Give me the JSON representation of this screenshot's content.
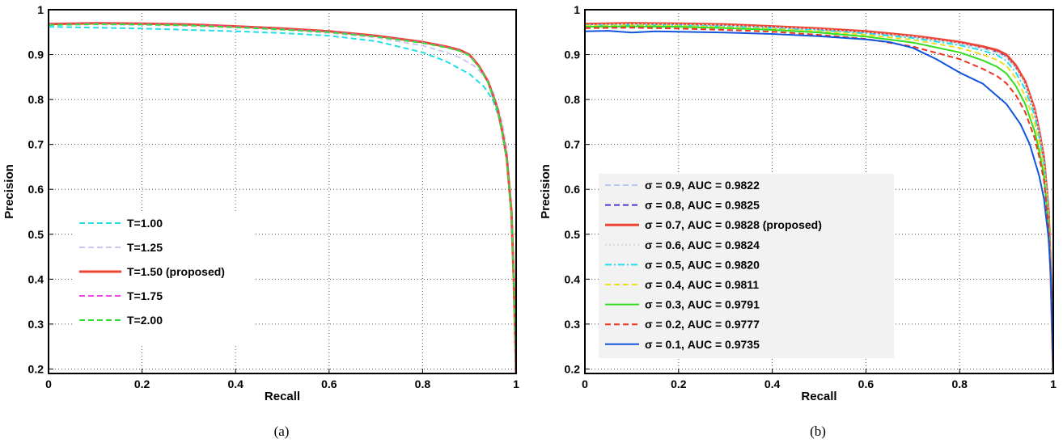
{
  "chart_data": [
    {
      "type": "line",
      "caption": "(a)",
      "xlabel": "Recall",
      "ylabel": "Precision",
      "xlim": [
        0,
        1
      ],
      "ylim": [
        0.19,
        1
      ],
      "xticks": [
        "0",
        "0.2",
        "0.4",
        "0.6",
        "0.8",
        "1"
      ],
      "yticks": [
        "0.2",
        "0.3",
        "0.4",
        "0.5",
        "0.6",
        "0.7",
        "0.8",
        "0.9",
        "1"
      ],
      "grid": true,
      "legend_position": "center-left",
      "series": [
        {
          "name": "T=1.00",
          "color": "#22e0e6",
          "dash": "dashed",
          "x": [
            0,
            0.1,
            0.2,
            0.3,
            0.4,
            0.5,
            0.6,
            0.7,
            0.8,
            0.85,
            0.9,
            0.93,
            0.95,
            0.97,
            0.98,
            0.99,
            0.995,
            1.0
          ],
          "y": [
            0.962,
            0.96,
            0.958,
            0.955,
            0.952,
            0.948,
            0.942,
            0.93,
            0.905,
            0.885,
            0.857,
            0.83,
            0.8,
            0.74,
            0.68,
            0.55,
            0.4,
            0.19
          ]
        },
        {
          "name": "T=1.25",
          "color": "#c8c8f0",
          "dash": "dashed",
          "x": [
            0,
            0.1,
            0.2,
            0.3,
            0.4,
            0.5,
            0.6,
            0.7,
            0.8,
            0.85,
            0.88,
            0.91,
            0.93,
            0.95,
            0.97,
            0.98,
            0.99,
            0.995,
            1.0
          ],
          "y": [
            0.966,
            0.967,
            0.966,
            0.964,
            0.96,
            0.955,
            0.948,
            0.938,
            0.92,
            0.905,
            0.893,
            0.875,
            0.855,
            0.82,
            0.75,
            0.69,
            0.56,
            0.41,
            0.19
          ]
        },
        {
          "name": "T=1.50 (proposed)",
          "color": "#ee4433",
          "dash": "solid",
          "x": [
            0,
            0.1,
            0.2,
            0.3,
            0.4,
            0.5,
            0.6,
            0.7,
            0.8,
            0.85,
            0.88,
            0.9,
            0.92,
            0.94,
            0.96,
            0.97,
            0.98,
            0.99,
            0.995,
            1.0
          ],
          "y": [
            0.968,
            0.97,
            0.969,
            0.967,
            0.963,
            0.958,
            0.952,
            0.942,
            0.928,
            0.918,
            0.91,
            0.9,
            0.875,
            0.84,
            0.78,
            0.73,
            0.67,
            0.55,
            0.4,
            0.19
          ]
        },
        {
          "name": "T=1.75",
          "color": "#ee44ee",
          "dash": "dashed",
          "x": [
            0,
            0.1,
            0.2,
            0.3,
            0.4,
            0.5,
            0.6,
            0.7,
            0.8,
            0.85,
            0.88,
            0.9,
            0.92,
            0.94,
            0.96,
            0.97,
            0.98,
            0.99,
            0.995,
            1.0
          ],
          "y": [
            0.967,
            0.969,
            0.968,
            0.966,
            0.962,
            0.957,
            0.951,
            0.941,
            0.927,
            0.917,
            0.909,
            0.899,
            0.874,
            0.839,
            0.779,
            0.729,
            0.668,
            0.548,
            0.4,
            0.19
          ]
        },
        {
          "name": "T=2.00",
          "color": "#33dd33",
          "dash": "dashed",
          "x": [
            0,
            0.1,
            0.2,
            0.3,
            0.4,
            0.5,
            0.6,
            0.7,
            0.8,
            0.85,
            0.88,
            0.9,
            0.92,
            0.94,
            0.96,
            0.97,
            0.98,
            0.99,
            0.995,
            1.0
          ],
          "y": [
            0.966,
            0.968,
            0.967,
            0.965,
            0.961,
            0.956,
            0.95,
            0.94,
            0.926,
            0.916,
            0.908,
            0.898,
            0.873,
            0.838,
            0.778,
            0.728,
            0.667,
            0.547,
            0.4,
            0.19
          ]
        }
      ]
    },
    {
      "type": "line",
      "caption": "(b)",
      "xlabel": "Recall",
      "ylabel": "Precision",
      "xlim": [
        0,
        1
      ],
      "ylim": [
        0.19,
        1
      ],
      "xticks": [
        "0",
        "0.2",
        "0.4",
        "0.6",
        "0.8",
        "1"
      ],
      "yticks": [
        "0.2",
        "0.3",
        "0.4",
        "0.5",
        "0.6",
        "0.7",
        "0.8",
        "0.9",
        "1"
      ],
      "grid": true,
      "legend_position": "center-left",
      "series": [
        {
          "name": "σ = 0.9, AUC = 0.9822",
          "color": "#b4c8f0",
          "dash": "dashed",
          "x": [
            0,
            0.1,
            0.2,
            0.3,
            0.4,
            0.5,
            0.6,
            0.7,
            0.8,
            0.85,
            0.88,
            0.9,
            0.92,
            0.94,
            0.96,
            0.97,
            0.98,
            0.99,
            0.995,
            1.0
          ],
          "y": [
            0.966,
            0.968,
            0.967,
            0.965,
            0.961,
            0.956,
            0.949,
            0.94,
            0.925,
            0.914,
            0.905,
            0.894,
            0.87,
            0.835,
            0.775,
            0.725,
            0.665,
            0.545,
            0.4,
            0.19
          ]
        },
        {
          "name": "σ = 0.8, AUC = 0.9825",
          "color": "#5533cc",
          "dash": "dashed",
          "x": [
            0,
            0.1,
            0.2,
            0.3,
            0.4,
            0.5,
            0.6,
            0.7,
            0.8,
            0.85,
            0.88,
            0.9,
            0.92,
            0.94,
            0.96,
            0.97,
            0.98,
            0.99,
            0.995,
            1.0
          ],
          "y": [
            0.967,
            0.969,
            0.968,
            0.966,
            0.962,
            0.957,
            0.95,
            0.941,
            0.927,
            0.916,
            0.907,
            0.897,
            0.873,
            0.838,
            0.778,
            0.728,
            0.667,
            0.547,
            0.4,
            0.19
          ]
        },
        {
          "name": "σ = 0.7, AUC = 0.9828 (proposed)",
          "color": "#ee4433",
          "dash": "solid",
          "x": [
            0,
            0.1,
            0.2,
            0.3,
            0.4,
            0.5,
            0.6,
            0.7,
            0.8,
            0.85,
            0.88,
            0.9,
            0.92,
            0.94,
            0.96,
            0.97,
            0.98,
            0.99,
            0.995,
            1.0
          ],
          "y": [
            0.968,
            0.97,
            0.969,
            0.967,
            0.963,
            0.958,
            0.952,
            0.942,
            0.928,
            0.918,
            0.91,
            0.9,
            0.876,
            0.84,
            0.78,
            0.73,
            0.67,
            0.55,
            0.4,
            0.19
          ]
        },
        {
          "name": "σ = 0.6, AUC = 0.9824",
          "color": "#d8d8d8",
          "dash": "dotted",
          "x": [
            0,
            0.1,
            0.2,
            0.3,
            0.4,
            0.5,
            0.6,
            0.7,
            0.8,
            0.85,
            0.88,
            0.9,
            0.92,
            0.94,
            0.96,
            0.97,
            0.98,
            0.99,
            0.995,
            1.0
          ],
          "y": [
            0.966,
            0.968,
            0.967,
            0.965,
            0.961,
            0.956,
            0.949,
            0.94,
            0.925,
            0.914,
            0.905,
            0.894,
            0.87,
            0.835,
            0.776,
            0.726,
            0.666,
            0.546,
            0.4,
            0.19
          ]
        },
        {
          "name": "σ = 0.5, AUC = 0.9820",
          "color": "#22ddee",
          "dash": "dashdot",
          "x": [
            0,
            0.1,
            0.2,
            0.3,
            0.4,
            0.5,
            0.6,
            0.7,
            0.8,
            0.85,
            0.88,
            0.9,
            0.92,
            0.94,
            0.96,
            0.97,
            0.98,
            0.99,
            0.995,
            1.0
          ],
          "y": [
            0.965,
            0.966,
            0.965,
            0.963,
            0.959,
            0.954,
            0.947,
            0.937,
            0.921,
            0.909,
            0.899,
            0.886,
            0.86,
            0.823,
            0.765,
            0.716,
            0.657,
            0.54,
            0.4,
            0.19
          ]
        },
        {
          "name": "σ = 0.4, AUC = 0.9811",
          "color": "#eedd22",
          "dash": "dashed",
          "x": [
            0,
            0.1,
            0.2,
            0.3,
            0.4,
            0.5,
            0.6,
            0.7,
            0.8,
            0.85,
            0.88,
            0.9,
            0.92,
            0.94,
            0.96,
            0.97,
            0.98,
            0.99,
            0.995,
            1.0
          ],
          "y": [
            0.964,
            0.965,
            0.964,
            0.961,
            0.957,
            0.952,
            0.944,
            0.933,
            0.915,
            0.9,
            0.888,
            0.875,
            0.847,
            0.808,
            0.75,
            0.702,
            0.645,
            0.532,
            0.4,
            0.19
          ]
        },
        {
          "name": "σ = 0.3, AUC = 0.9791",
          "color": "#33dd22",
          "dash": "solid",
          "x": [
            0,
            0.1,
            0.2,
            0.3,
            0.4,
            0.5,
            0.6,
            0.7,
            0.8,
            0.85,
            0.88,
            0.9,
            0.92,
            0.94,
            0.96,
            0.97,
            0.98,
            0.99,
            0.995,
            1.0
          ],
          "y": [
            0.962,
            0.963,
            0.962,
            0.959,
            0.955,
            0.949,
            0.94,
            0.927,
            0.905,
            0.887,
            0.873,
            0.858,
            0.83,
            0.79,
            0.73,
            0.685,
            0.63,
            0.52,
            0.4,
            0.19
          ]
        },
        {
          "name": "σ = 0.2, AUC = 0.9777",
          "color": "#ee3322",
          "dash": "dashed",
          "x": [
            0,
            0.1,
            0.2,
            0.3,
            0.4,
            0.5,
            0.6,
            0.7,
            0.8,
            0.85,
            0.88,
            0.9,
            0.92,
            0.94,
            0.96,
            0.97,
            0.98,
            0.99,
            0.995,
            1.0
          ],
          "y": [
            0.959,
            0.96,
            0.958,
            0.955,
            0.951,
            0.944,
            0.935,
            0.918,
            0.89,
            0.868,
            0.852,
            0.836,
            0.81,
            0.772,
            0.715,
            0.672,
            0.62,
            0.515,
            0.4,
            0.19
          ]
        },
        {
          "name": "σ = 0.1, AUC = 0.9735",
          "color": "#1155dd",
          "dash": "solid",
          "x": [
            0,
            0.05,
            0.1,
            0.15,
            0.2,
            0.3,
            0.4,
            0.5,
            0.6,
            0.65,
            0.7,
            0.75,
            0.8,
            0.85,
            0.9,
            0.93,
            0.95,
            0.97,
            0.98,
            0.99,
            0.995,
            1.0
          ],
          "y": [
            0.952,
            0.953,
            0.949,
            0.952,
            0.951,
            0.949,
            0.946,
            0.941,
            0.934,
            0.928,
            0.915,
            0.89,
            0.86,
            0.835,
            0.79,
            0.745,
            0.7,
            0.63,
            0.58,
            0.49,
            0.4,
            0.19
          ]
        }
      ]
    }
  ]
}
